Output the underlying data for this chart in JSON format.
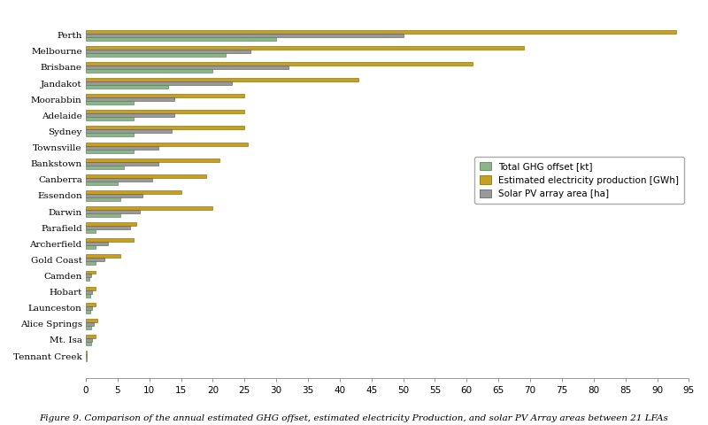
{
  "cities": [
    "Perth",
    "Melbourne",
    "Brisbane",
    "Jandakot",
    "Moorabbin",
    "Adelaide",
    "Sydney",
    "Townsville",
    "Bankstown",
    "Canberra",
    "Essendon",
    "Darwin",
    "Parafield",
    "Archerfield",
    "Gold Coast",
    "Camden",
    "Hobart",
    "Launceston",
    "Alice Springs",
    "Mt. Isa",
    "Tennant Creek"
  ],
  "ghg_offset": [
    30.0,
    22.0,
    20.0,
    13.0,
    7.5,
    7.5,
    7.5,
    7.5,
    6.0,
    5.0,
    5.5,
    5.5,
    1.5,
    1.5,
    1.5,
    0.5,
    0.7,
    0.7,
    0.8,
    0.8,
    0.1
  ],
  "elec_production": [
    93.0,
    69.0,
    61.0,
    43.0,
    25.0,
    25.0,
    25.0,
    25.5,
    21.0,
    19.0,
    15.0,
    20.0,
    8.0,
    7.5,
    5.5,
    1.5,
    1.5,
    1.5,
    1.8,
    1.5,
    0.2
  ],
  "pv_area": [
    50.0,
    26.0,
    32.0,
    23.0,
    14.0,
    14.0,
    13.5,
    11.5,
    11.5,
    10.5,
    9.0,
    8.5,
    7.0,
    3.5,
    3.0,
    0.8,
    1.0,
    1.0,
    1.2,
    1.0,
    0.1
  ],
  "color_ghg": "#8db58d",
  "color_elec": "#c8a020",
  "color_pv": "#999999",
  "xlim": [
    0,
    95
  ],
  "xticks": [
    0,
    5,
    10,
    15,
    20,
    25,
    30,
    35,
    40,
    45,
    50,
    55,
    60,
    65,
    70,
    75,
    80,
    85,
    90,
    95
  ],
  "legend_labels": [
    "Total GHG offset [kt]",
    "Estimated electricity production [GWh]",
    "Solar PV array area [ha]"
  ],
  "caption": "Figure 9. Comparison of the annual estimated GHG offset, estimated electricity Production, and solar PV Array areas between 21 LFAs",
  "background_color": "#ffffff",
  "bar_height": 0.22,
  "axis_fontsize": 7.5
}
